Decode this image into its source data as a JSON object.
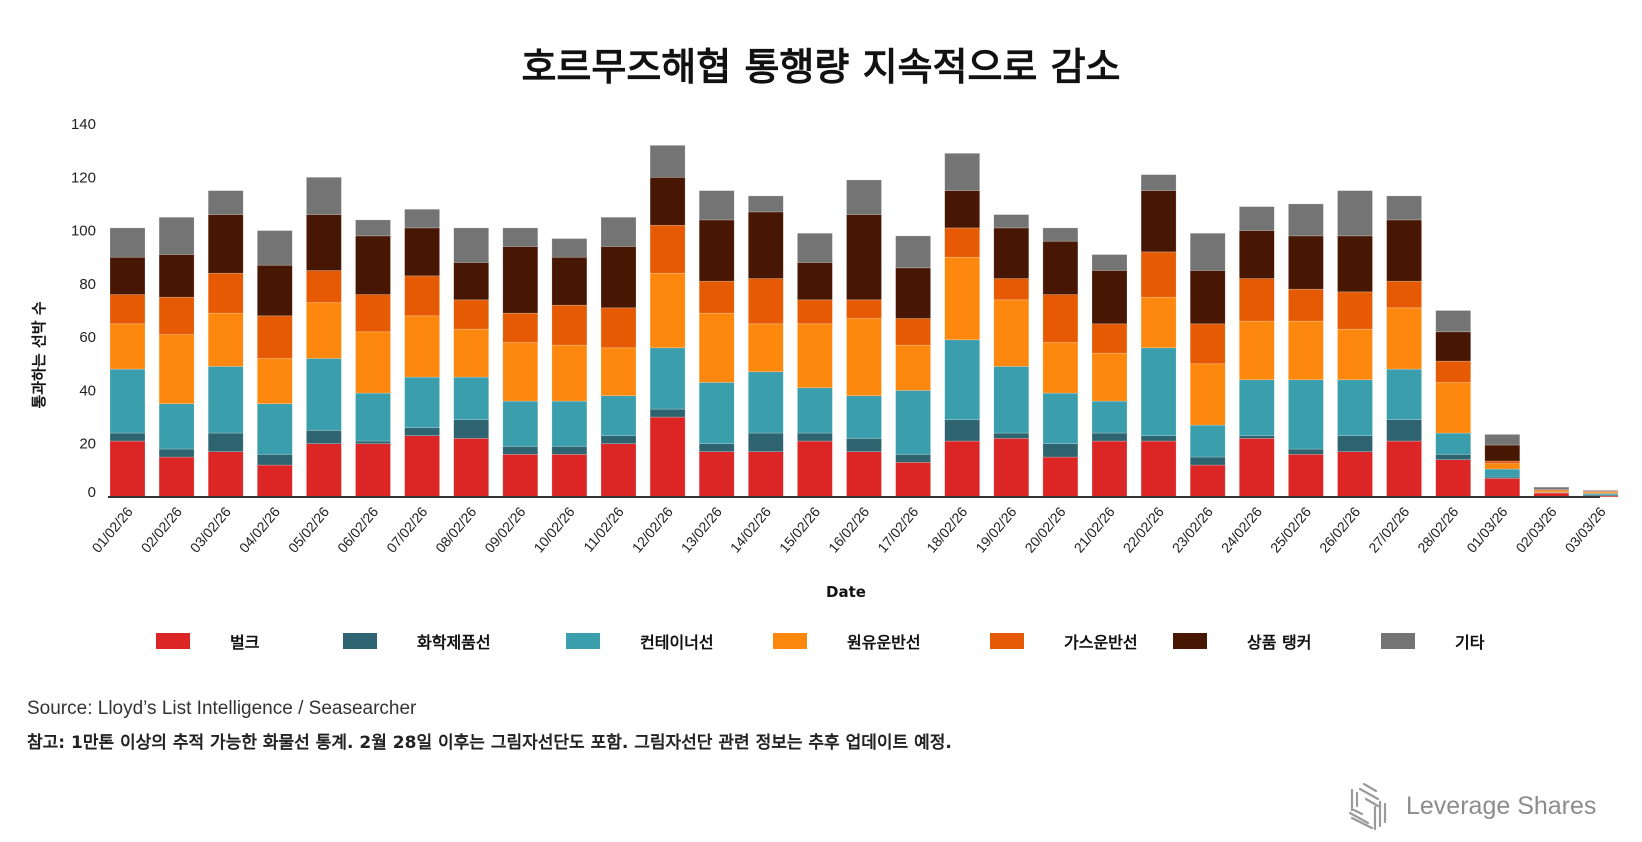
{
  "title": "호르무즈해협 통행량 지속적으로 감소",
  "chart_data": {
    "type": "bar",
    "stacked": true,
    "title": "호르무즈해협 통행량 지속적으로 감소",
    "xlabel": "Date",
    "ylabel": "통과하는 선박 수",
    "ylim": [
      0,
      140
    ],
    "yticks": [
      0,
      20,
      40,
      60,
      80,
      100,
      120,
      140
    ],
    "legend_position": "bottom",
    "categories": [
      "01/02/26",
      "02/02/26",
      "03/02/26",
      "04/02/26",
      "05/02/26",
      "06/02/26",
      "07/02/26",
      "08/02/26",
      "09/02/26",
      "10/02/26",
      "11/02/26",
      "12/02/26",
      "13/02/26",
      "14/02/26",
      "15/02/26",
      "16/02/26",
      "17/02/26",
      "18/02/26",
      "19/02/26",
      "20/02/26",
      "21/02/26",
      "22/02/26",
      "23/02/26",
      "24/02/26",
      "25/02/26",
      "26/02/26",
      "27/02/26",
      "28/02/26",
      "01/03/26",
      "02/03/26",
      "03/03/26"
    ],
    "series": [
      {
        "name": "벌크",
        "color": "#dc2626",
        "values": [
          21,
          15,
          17,
          12,
          20,
          20,
          23,
          22,
          16,
          16,
          20,
          30,
          17,
          17,
          21,
          17,
          13,
          21,
          22,
          15,
          21,
          21,
          12,
          22,
          16,
          17,
          21,
          14,
          7,
          1.5,
          0.4
        ]
      },
      {
        "name": "화학제품선",
        "color": "#2d6470",
        "values": [
          3,
          3,
          7,
          4,
          5,
          1,
          3,
          7,
          3,
          3,
          3,
          3,
          3,
          7,
          3,
          5,
          3,
          8,
          2,
          5,
          3,
          2,
          3,
          1,
          2,
          6,
          8,
          2,
          0.5,
          0,
          0.4
        ]
      },
      {
        "name": "컨테이너선",
        "color": "#3a9ead",
        "values": [
          24,
          17,
          25,
          19,
          27,
          18,
          19,
          16,
          17,
          17,
          15,
          23,
          23,
          23,
          17,
          16,
          24,
          30,
          25,
          19,
          12,
          33,
          12,
          21,
          26,
          21,
          19,
          8,
          3,
          0.2,
          0.5
        ]
      },
      {
        "name": "원유운반선",
        "color": "#fe870d",
        "values": [
          17,
          26,
          20,
          17,
          21,
          23,
          23,
          18,
          22,
          21,
          18,
          28,
          26,
          18,
          24,
          29,
          17,
          31,
          25,
          19,
          18,
          19,
          23,
          22,
          22,
          19,
          23,
          19,
          2,
          0.6,
          0.5
        ]
      },
      {
        "name": "가스운반선",
        "color": "#e55a02",
        "values": [
          11,
          14,
          15,
          16,
          12,
          14,
          15,
          11,
          11,
          15,
          15,
          18,
          12,
          17,
          9,
          7,
          10,
          11,
          8,
          18,
          11,
          17,
          15,
          16,
          12,
          14,
          10,
          8,
          1,
          0.4,
          0.3
        ]
      },
      {
        "name": "상품 탱커",
        "color": "#481703",
        "values": [
          14,
          16,
          22,
          19,
          21,
          22,
          18,
          14,
          25,
          18,
          23,
          18,
          23,
          25,
          14,
          32,
          19,
          14,
          19,
          20,
          20,
          23,
          20,
          18,
          20,
          21,
          23,
          11,
          6,
          0.1,
          0.1
        ]
      },
      {
        "name": "기타",
        "color": "#747474",
        "values": [
          11,
          14,
          9,
          13,
          14,
          6,
          7,
          13,
          7,
          7,
          11,
          12,
          11,
          6,
          11,
          13,
          12,
          14,
          5,
          5,
          6,
          6,
          14,
          9,
          12,
          17,
          9,
          8,
          4,
          0.9,
          0.3
        ]
      }
    ]
  },
  "legend": [
    {
      "label": "벌크",
      "color": "#dc2626"
    },
    {
      "label": "화학제품선",
      "color": "#2d6470"
    },
    {
      "label": "컨테이너선",
      "color": "#3a9ead"
    },
    {
      "label": "원유운반선",
      "color": "#fe870d"
    },
    {
      "label": "가스운반선",
      "color": "#e55a02"
    },
    {
      "label": "상품 탱커",
      "color": "#481703"
    },
    {
      "label": "기타",
      "color": "#747474"
    }
  ],
  "source": "Source: Lloyd’s List Intelligence / Seasearcher",
  "note": "참고: 1만톤 이상의 추적 가능한 화물선 통계. 2월 28일 이후는 그림자선단도 포함. 그림자선단 관련 정보는 추후 업데이트 예정.",
  "brand": {
    "name": "Leverage Shares",
    "icon": "leverage-shares-logo-icon"
  }
}
